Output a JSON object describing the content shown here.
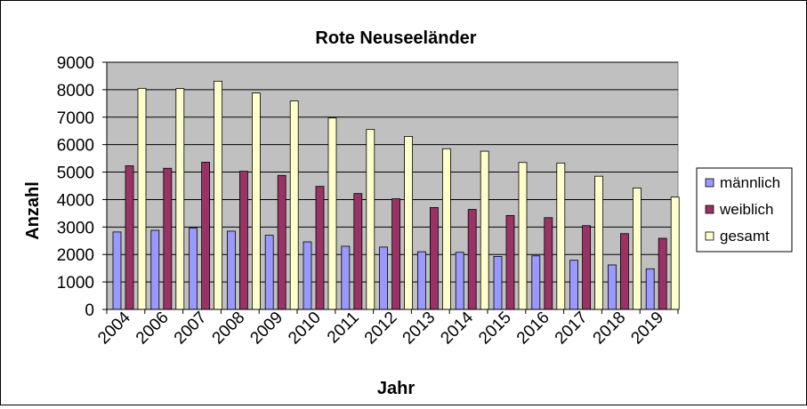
{
  "chart_data": {
    "type": "bar",
    "title": "Rote Neuseeländer",
    "xlabel": "Jahr",
    "ylabel": "Anzahl",
    "ylim": [
      0,
      9000
    ],
    "yticks": [
      0,
      1000,
      2000,
      3000,
      4000,
      5000,
      6000,
      7000,
      8000,
      9000
    ],
    "grid": true,
    "legend_position": "right",
    "plot_background": "#c0c0c0",
    "categories": [
      "2004",
      "2006",
      "2007",
      "2008",
      "2009",
      "2010",
      "2011",
      "2012",
      "2013",
      "2014",
      "2015",
      "2016",
      "2017",
      "2018",
      "2019"
    ],
    "series": [
      {
        "name": "männlich",
        "color": "#9999ff",
        "values": [
          2820,
          2880,
          2960,
          2850,
          2700,
          2460,
          2300,
          2270,
          2100,
          2080,
          1930,
          1950,
          1790,
          1620,
          1480
        ]
      },
      {
        "name": "weiblich",
        "color": "#993366",
        "values": [
          5230,
          5140,
          5360,
          5030,
          4880,
          4480,
          4220,
          4030,
          3710,
          3640,
          3420,
          3340,
          3050,
          2760,
          2590
        ]
      },
      {
        "name": "gesamt",
        "color": "#ffffcc",
        "values": [
          8050,
          8040,
          8310,
          7880,
          7590,
          6970,
          6550,
          6300,
          5850,
          5760,
          5350,
          5330,
          4850,
          4420,
          4090
        ]
      }
    ]
  }
}
